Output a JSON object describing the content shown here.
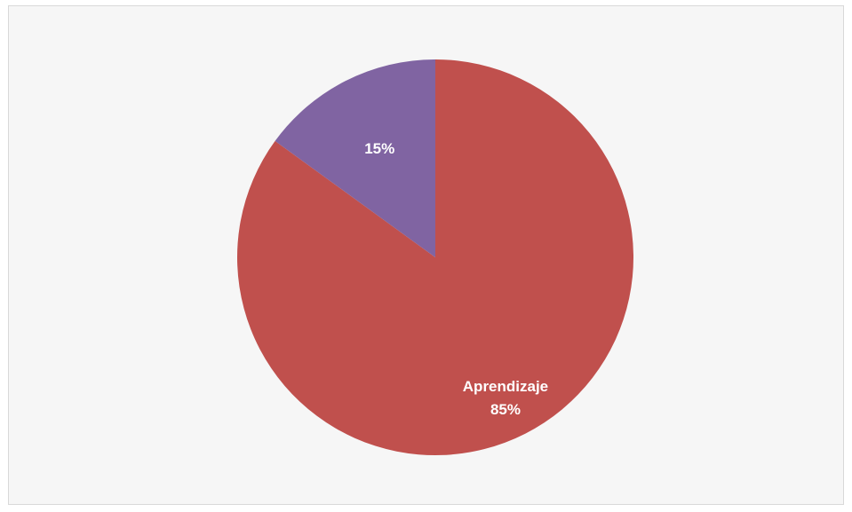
{
  "chart_data": {
    "type": "pie",
    "slices": [
      {
        "label": "Aprendizaje",
        "value": 85,
        "value_label": "85%",
        "color": "#c0504d",
        "show_name": true
      },
      {
        "label": "",
        "value": 15,
        "value_label": "15%",
        "color": "#8064a2",
        "show_name": false
      }
    ],
    "label_color": "#ffffff",
    "legend": "none"
  }
}
